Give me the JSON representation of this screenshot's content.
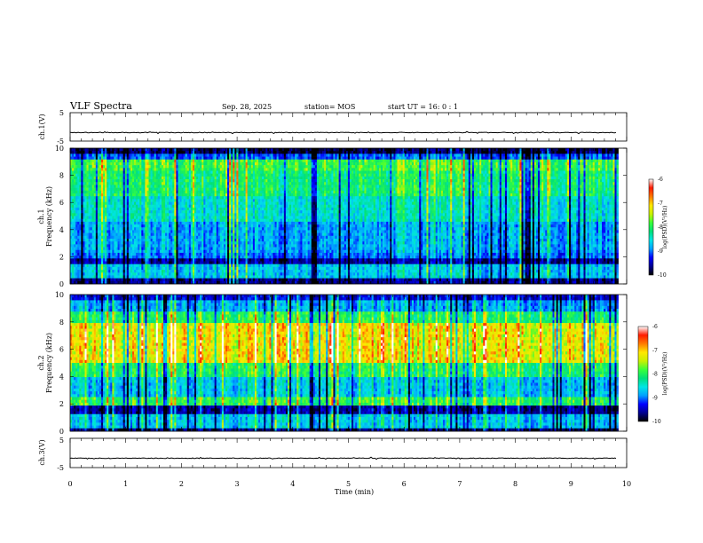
{
  "header": {
    "title": "VLF Spectra",
    "date": "Sep. 28, 2025",
    "station": "station= MOS",
    "start_ut": "start  UT =   16: 0  : 1"
  },
  "colors": {
    "spectrogram_scale": [
      "#000000",
      "#00008f",
      "#0000ff",
      "#00a0ff",
      "#00e5e5",
      "#00e07a",
      "#39ff3a",
      "#c8f000",
      "#ffe800",
      "#ff7b00",
      "#ff1a00",
      "#ffffff"
    ]
  },
  "chart_data": [
    {
      "type": "line",
      "name": "ch1-waveform",
      "ylabel": "ch.1(V)",
      "ylim": [
        -5,
        5
      ],
      "yticks": [
        "5",
        "-5"
      ],
      "xlim": [
        0,
        10
      ],
      "baseline": -2
    },
    {
      "type": "heatmap",
      "name": "ch1-spectrogram",
      "ylabel": [
        "ch.1",
        "Frequency (kHz)"
      ],
      "ylim": [
        0,
        10
      ],
      "yticks": [
        "0",
        "2",
        "4",
        "6",
        "8",
        "10"
      ],
      "xlim": [
        0,
        10
      ],
      "data_end_min": 9.85,
      "colorbar": {
        "label": "log(PSD)(V²/Hz)",
        "range": [
          -10,
          -6
        ],
        "ticks": [
          "-6",
          "-7",
          "-8",
          "-9",
          "-10"
        ]
      }
    },
    {
      "type": "heatmap",
      "name": "ch2-spectrogram",
      "ylabel": [
        "ch.2",
        "Frequency (kHz)"
      ],
      "ylim": [
        0,
        10
      ],
      "yticks": [
        "0",
        "2",
        "4",
        "6",
        "8",
        "10"
      ],
      "xlim": [
        0,
        10
      ],
      "data_end_min": 9.85,
      "colorbar": {
        "label": "log(PSD)(V²/Hz)",
        "range": [
          -10,
          -6
        ],
        "ticks": [
          "-6",
          "-7",
          "-8",
          "-9",
          "-10"
        ]
      }
    },
    {
      "type": "line",
      "name": "ch3-waveform",
      "ylabel": "ch.3(V)",
      "ylim": [
        -5,
        5
      ],
      "yticks": [
        "5",
        "-5"
      ],
      "xlim": [
        0,
        10
      ],
      "baseline": -1.8
    }
  ],
  "xaxis": {
    "label": "Time  (min)",
    "ticks": [
      "0",
      "1",
      "2",
      "3",
      "4",
      "5",
      "6",
      "7",
      "8",
      "9",
      "10"
    ]
  }
}
